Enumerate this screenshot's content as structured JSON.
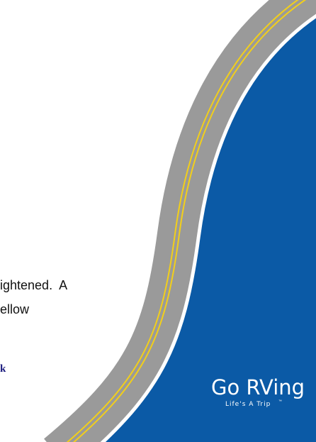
{
  "body_text": {
    "line1": "ightened.  A",
    "line2": "ellow"
  },
  "link_text": "k",
  "logo": {
    "title": "Go RVing",
    "tagline": "Life's A Trip",
    "trademark": "™"
  }
}
